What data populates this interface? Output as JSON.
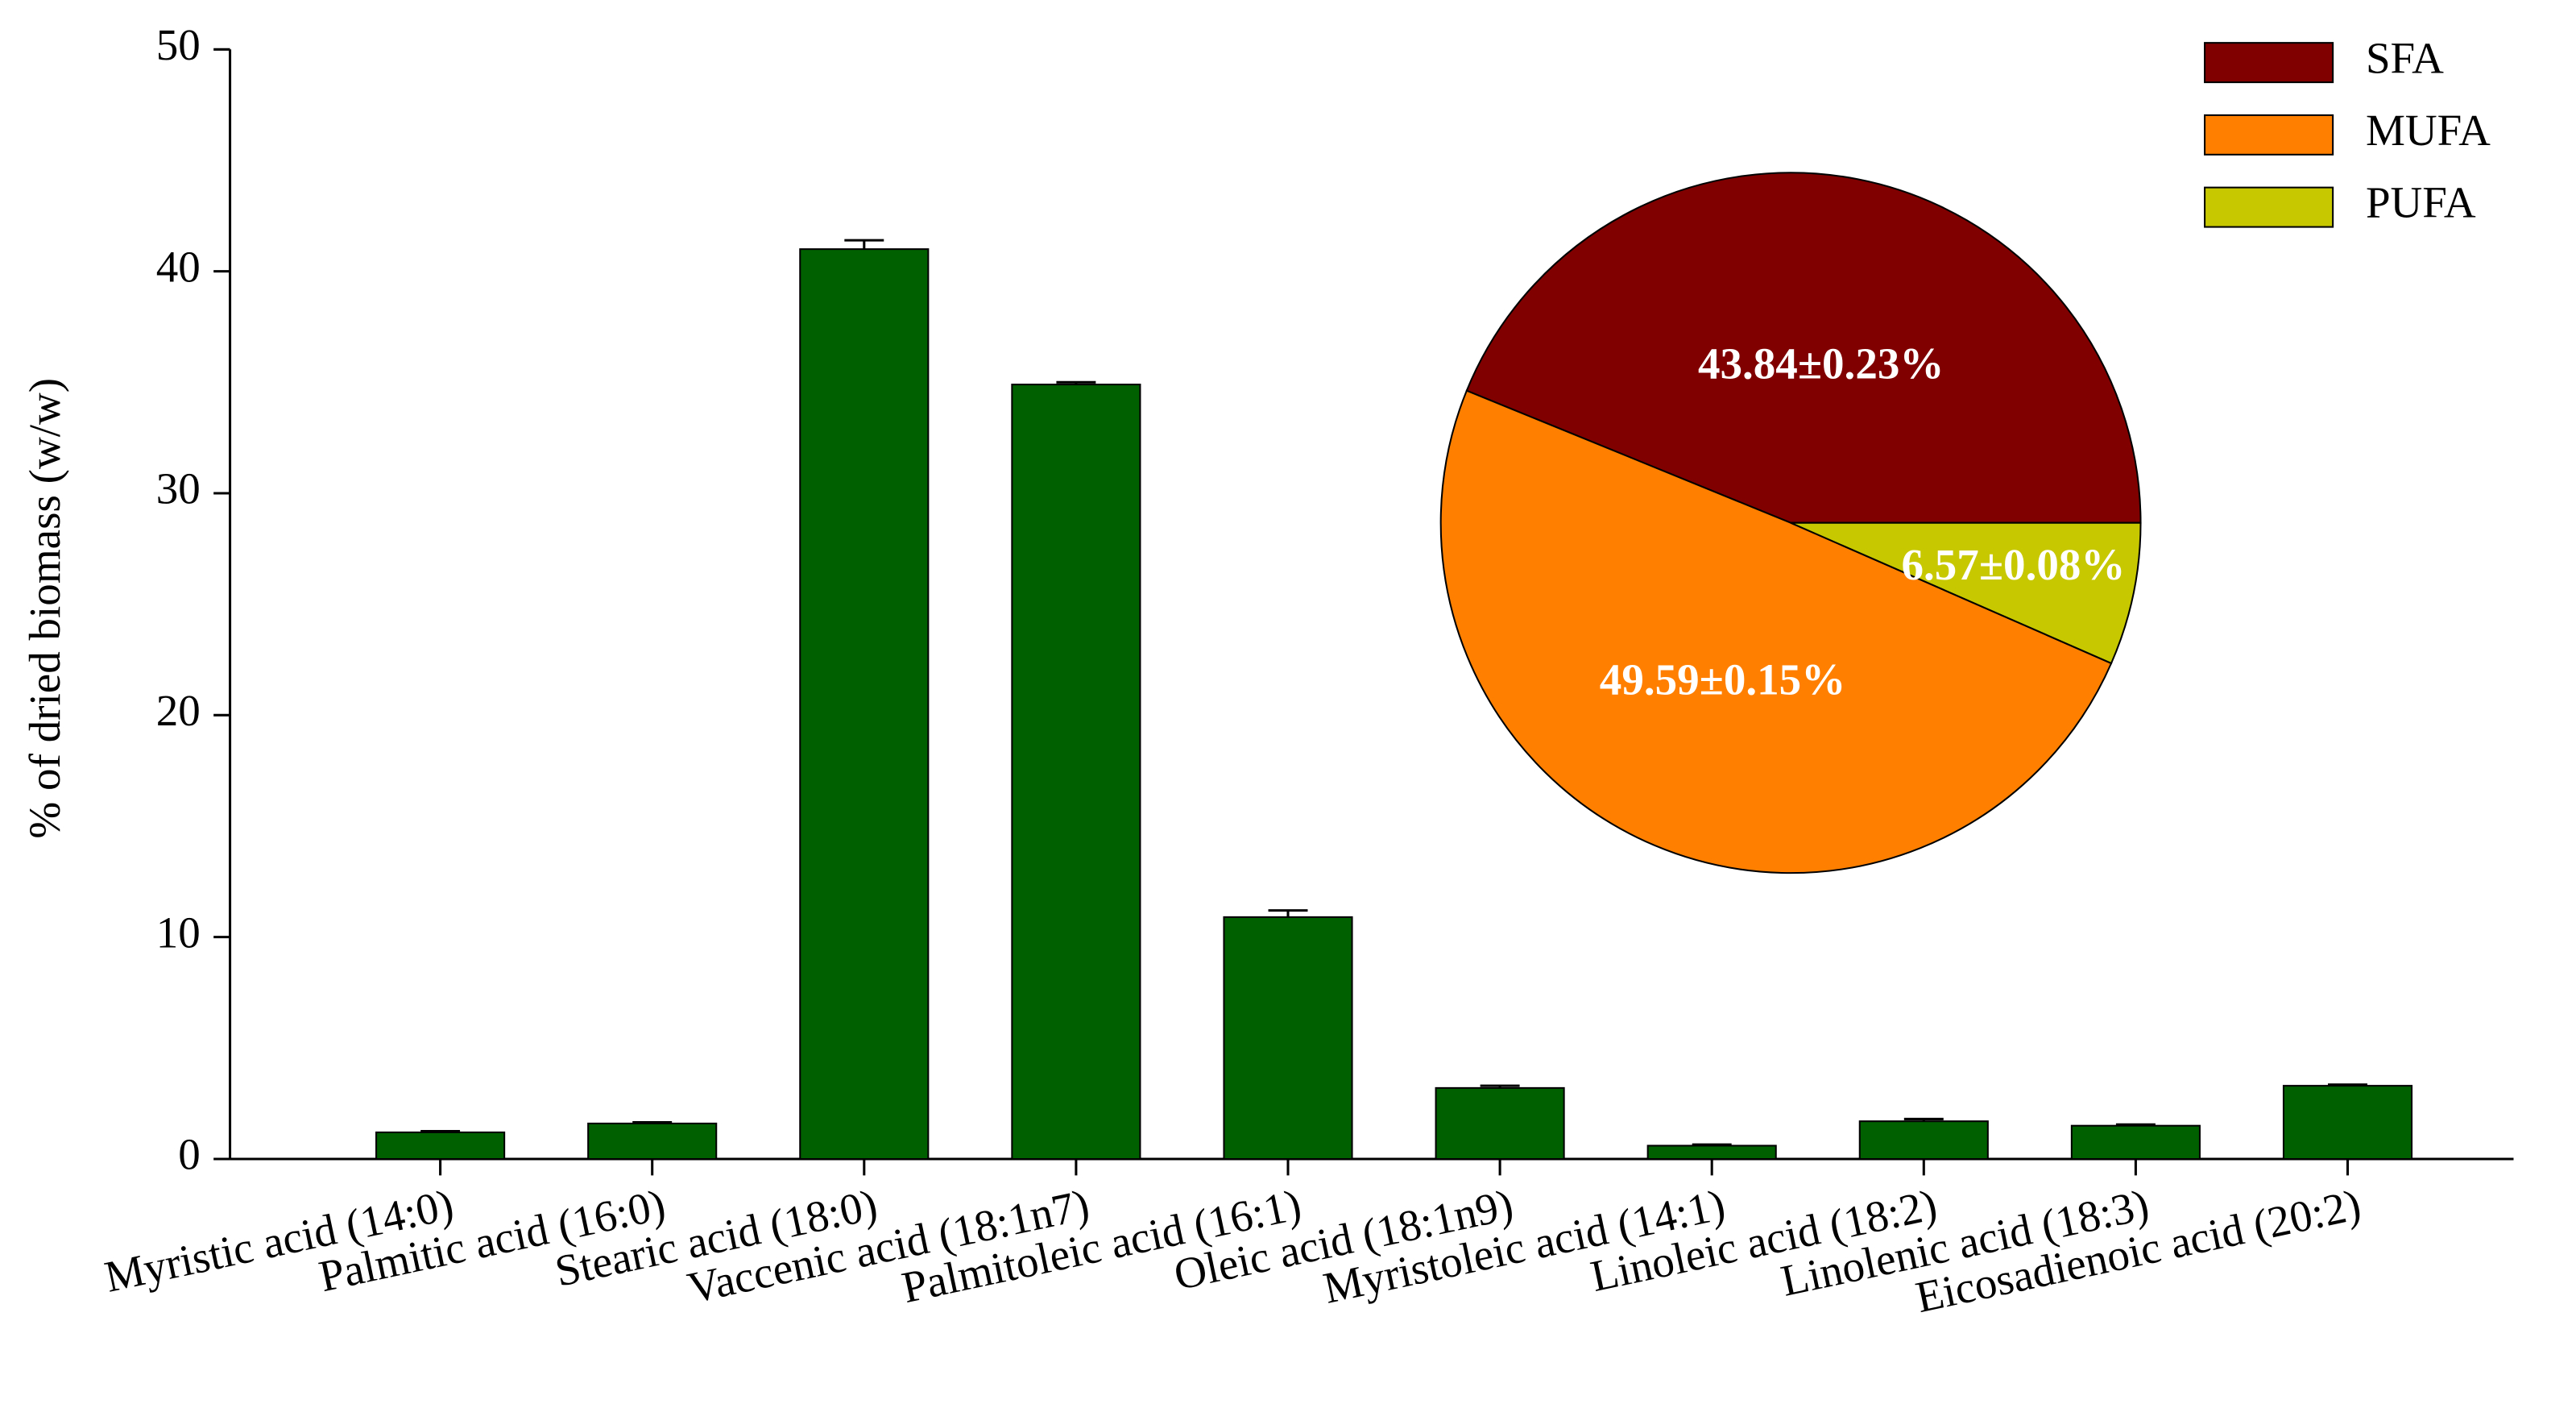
{
  "chart_data": [
    {
      "type": "bar",
      "y_label": "% of dried biomass (w/w)",
      "categories": [
        "Myristic acid (14:0)",
        "Palmitic acid (16:0)",
        "Stearic acid (18:0)",
        "Vaccenic acid (18:1n7)",
        "Palmitoleic acid (16:1)",
        "Oleic acid (18:1n9)",
        "Myristoleic acid (14:1)",
        "Linoleic acid (18:2)",
        "Linolenic acid (18:3)",
        "Eicosadienoic acid (20:2)"
      ],
      "values": [
        1.2,
        1.6,
        41.0,
        34.9,
        10.9,
        3.2,
        0.6,
        1.7,
        1.5,
        3.3
      ],
      "errors": [
        0.05,
        0.05,
        0.4,
        0.1,
        0.3,
        0.1,
        0.05,
        0.1,
        0.05,
        0.05
      ],
      "color": "#006000",
      "ylim": [
        0,
        50
      ],
      "yticks": [
        0,
        10,
        20,
        30,
        40,
        50
      ]
    },
    {
      "type": "pie",
      "categories": [
        "SFA",
        "MUFA",
        "PUFA"
      ],
      "values": [
        43.84,
        49.59,
        6.57
      ],
      "value_labels": [
        "43.84±0.23%",
        "49.59±0.15%",
        "6.57±0.08%"
      ],
      "colors": [
        "#800000",
        "#ff8000",
        "#c8c800"
      ],
      "legend": "upper right"
    }
  ]
}
